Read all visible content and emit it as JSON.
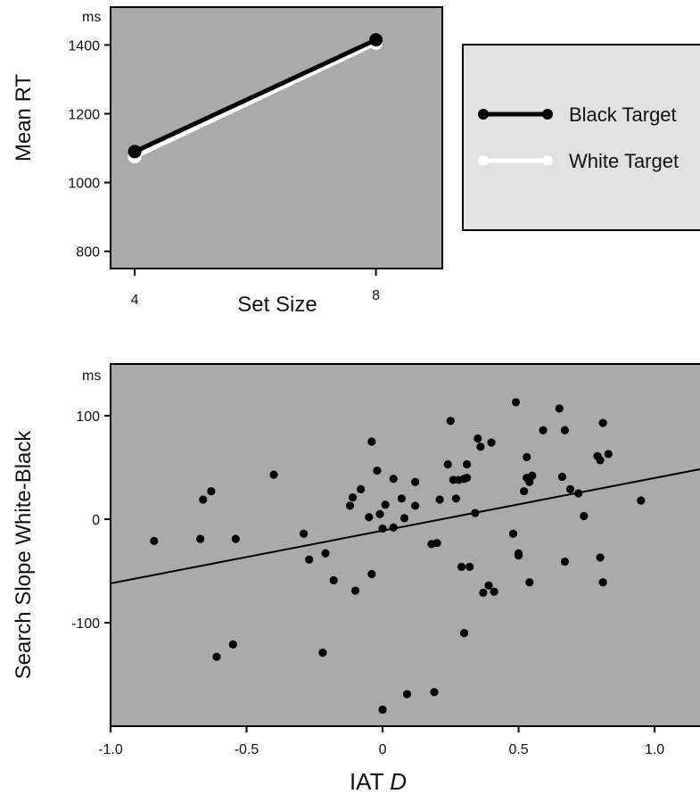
{
  "chart_data": [
    {
      "type": "line",
      "title": "",
      "xlabel": "Set Size",
      "ylabel": "Mean RT",
      "yunit": "ms",
      "x": [
        4,
        8
      ],
      "xticks": [
        "4",
        "8"
      ],
      "yticks": [
        "800",
        "1000",
        "1200",
        "1400"
      ],
      "ylim": [
        750,
        1510
      ],
      "xlim": [
        3.6,
        9.1
      ],
      "grid": false,
      "legend_position": "right",
      "series": [
        {
          "name": "Black Target",
          "color": "#000000",
          "values": [
            1090,
            1415
          ]
        },
        {
          "name": "White Target",
          "color": "#ffffff",
          "values": [
            1075,
            1405
          ]
        }
      ],
      "background": "#aaaaaa"
    },
    {
      "type": "scatter",
      "title": "",
      "xlabel": "IAT D",
      "xlabel_main": "IAT",
      "xlabel_italic": "D",
      "ylabel": "Search Slope White-Black",
      "yunit": "ms",
      "xticks": [
        "-1.0",
        "-0.5",
        "0",
        "0.5",
        "1.0"
      ],
      "yticks": [
        "-100",
        "0",
        "100"
      ],
      "xlim": [
        -1.0,
        1.18
      ],
      "ylim": [
        -200,
        150
      ],
      "grid": false,
      "background": "#aaaaaa",
      "regression_line": {
        "x": [
          -1.0,
          1.18
        ],
        "y": [
          -62,
          49
        ]
      },
      "points": [
        [
          -0.84,
          -21
        ],
        [
          -0.67,
          -19
        ],
        [
          -0.66,
          19
        ],
        [
          -0.63,
          27
        ],
        [
          -0.61,
          -133
        ],
        [
          -0.55,
          -121
        ],
        [
          -0.54,
          -19
        ],
        [
          -0.4,
          43
        ],
        [
          -0.29,
          -14
        ],
        [
          -0.27,
          -39
        ],
        [
          -0.22,
          -129
        ],
        [
          -0.21,
          -33
        ],
        [
          -0.18,
          -59
        ],
        [
          -0.12,
          13
        ],
        [
          -0.11,
          21
        ],
        [
          -0.1,
          -69
        ],
        [
          -0.08,
          29
        ],
        [
          -0.05,
          2
        ],
        [
          -0.04,
          75
        ],
        [
          -0.04,
          -53
        ],
        [
          -0.02,
          47
        ],
        [
          -0.01,
          5
        ],
        [
          0.0,
          -9
        ],
        [
          0.01,
          14
        ],
        [
          0.0,
          -184
        ],
        [
          0.04,
          39
        ],
        [
          0.04,
          -8
        ],
        [
          0.07,
          20
        ],
        [
          0.08,
          1
        ],
        [
          0.09,
          -169
        ],
        [
          0.12,
          36
        ],
        [
          0.12,
          13
        ],
        [
          0.18,
          -24
        ],
        [
          0.19,
          -167
        ],
        [
          0.2,
          -23
        ],
        [
          0.21,
          19
        ],
        [
          0.24,
          53
        ],
        [
          0.25,
          95
        ],
        [
          0.26,
          38
        ],
        [
          0.27,
          20
        ],
        [
          0.28,
          38
        ],
        [
          0.29,
          -46
        ],
        [
          0.3,
          39
        ],
        [
          0.3,
          -110
        ],
        [
          0.31,
          53
        ],
        [
          0.31,
          40
        ],
        [
          0.32,
          -46
        ],
        [
          0.34,
          6
        ],
        [
          0.35,
          78
        ],
        [
          0.36,
          70
        ],
        [
          0.37,
          -71
        ],
        [
          0.39,
          -64
        ],
        [
          0.4,
          74
        ],
        [
          0.41,
          -70
        ],
        [
          0.48,
          -14
        ],
        [
          0.49,
          113
        ],
        [
          0.5,
          -33
        ],
        [
          0.5,
          -35
        ],
        [
          0.52,
          27
        ],
        [
          0.53,
          40
        ],
        [
          0.53,
          60
        ],
        [
          0.54,
          36
        ],
        [
          0.54,
          -61
        ],
        [
          0.55,
          42
        ],
        [
          0.59,
          86
        ],
        [
          0.65,
          107
        ],
        [
          0.66,
          41
        ],
        [
          0.67,
          86
        ],
        [
          0.67,
          -41
        ],
        [
          0.69,
          29
        ],
        [
          0.72,
          25
        ],
        [
          0.74,
          3
        ],
        [
          0.79,
          61
        ],
        [
          0.8,
          57
        ],
        [
          0.8,
          -37
        ],
        [
          0.81,
          93
        ],
        [
          0.81,
          -61
        ],
        [
          0.83,
          63
        ],
        [
          0.95,
          18
        ]
      ]
    }
  ]
}
